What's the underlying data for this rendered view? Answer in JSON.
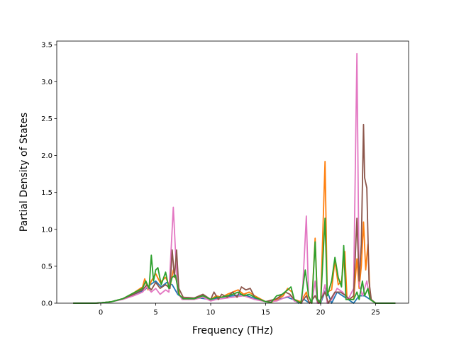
{
  "chart_data": {
    "type": "line",
    "title": "",
    "xlabel": "Frequency (THz)",
    "ylabel": "Partial Density of States",
    "xlim": [
      -4.0,
      28.0
    ],
    "ylim": [
      0.0,
      3.55
    ],
    "xticks": [
      0,
      5,
      10,
      15,
      20,
      25
    ],
    "yticks": [
      0.0,
      0.5,
      1.0,
      1.5,
      2.0,
      2.5,
      3.0,
      3.5
    ],
    "xtick_labels": [
      "0",
      "5",
      "10",
      "15",
      "20",
      "25"
    ],
    "ytick_labels": [
      "0.0",
      "0.5",
      "1.0",
      "1.5",
      "2.0",
      "2.5",
      "3.0",
      "3.5"
    ],
    "grid": false,
    "legend": null,
    "series": [
      {
        "color": "#1f77b4",
        "points": [
          [
            -2.5,
            0
          ],
          [
            -0.5,
            0
          ],
          [
            0,
            0.005
          ],
          [
            1,
            0.02
          ],
          [
            2,
            0.06
          ],
          [
            3,
            0.12
          ],
          [
            4,
            0.18
          ],
          [
            4.5,
            0.25
          ],
          [
            5,
            0.3
          ],
          [
            5.5,
            0.22
          ],
          [
            6,
            0.28
          ],
          [
            6.5,
            0.25
          ],
          [
            7,
            0.12
          ],
          [
            7.5,
            0.06
          ],
          [
            8,
            0.05
          ],
          [
            9,
            0.07
          ],
          [
            10,
            0.05
          ],
          [
            11,
            0.08
          ],
          [
            12,
            0.1
          ],
          [
            13,
            0.12
          ],
          [
            14,
            0.06
          ],
          [
            15,
            0.02
          ],
          [
            16,
            0.05
          ],
          [
            17,
            0.08
          ],
          [
            17.5,
            0.05
          ],
          [
            18,
            0
          ],
          [
            18.5,
            0.05
          ],
          [
            19,
            0
          ],
          [
            19.5,
            0.1
          ],
          [
            20,
            0
          ],
          [
            20.5,
            0.2
          ],
          [
            21,
            0
          ],
          [
            21.5,
            0.15
          ],
          [
            22,
            0.1
          ],
          [
            22.5,
            0.05
          ],
          [
            23,
            0
          ],
          [
            23.5,
            0.1
          ],
          [
            24,
            0.1
          ],
          [
            24.5,
            0.05
          ],
          [
            25,
            0
          ],
          [
            26.8,
            0
          ]
        ]
      },
      {
        "color": "#ff7f0e",
        "points": [
          [
            -2.5,
            0
          ],
          [
            -0.5,
            0
          ],
          [
            0,
            0.005
          ],
          [
            1,
            0.02
          ],
          [
            2,
            0.06
          ],
          [
            3,
            0.14
          ],
          [
            3.8,
            0.22
          ],
          [
            4.0,
            0.33
          ],
          [
            4.3,
            0.18
          ],
          [
            4.6,
            0.3
          ],
          [
            5.0,
            0.4
          ],
          [
            5.4,
            0.28
          ],
          [
            5.9,
            0.35
          ],
          [
            6.3,
            0.22
          ],
          [
            6.6,
            0.45
          ],
          [
            6.9,
            0.3
          ],
          [
            7.2,
            0.1
          ],
          [
            7.6,
            0.06
          ],
          [
            8.5,
            0.06
          ],
          [
            9.3,
            0.1
          ],
          [
            10,
            0.05
          ],
          [
            10.5,
            0.1
          ],
          [
            11,
            0.08
          ],
          [
            11.5,
            0.12
          ],
          [
            12,
            0.15
          ],
          [
            12.5,
            0.18
          ],
          [
            13,
            0.12
          ],
          [
            13.5,
            0.15
          ],
          [
            14,
            0.1
          ],
          [
            14.5,
            0.06
          ],
          [
            15,
            0.02
          ],
          [
            15.5,
            0.01
          ],
          [
            16,
            0.05
          ],
          [
            16.6,
            0.1
          ],
          [
            17,
            0.2
          ],
          [
            17.4,
            0.15
          ],
          [
            17.6,
            0.05
          ],
          [
            18.2,
            0.02
          ],
          [
            18.7,
            0.15
          ],
          [
            18.9,
            0.02
          ],
          [
            19.2,
            0
          ],
          [
            19.5,
            0.88
          ],
          [
            19.7,
            0.05
          ],
          [
            20.0,
            0
          ],
          [
            20.4,
            1.92
          ],
          [
            20.6,
            0.15
          ],
          [
            21.0,
            0.18
          ],
          [
            21.3,
            0.58
          ],
          [
            21.6,
            0.25
          ],
          [
            21.9,
            0.3
          ],
          [
            22.2,
            0.7
          ],
          [
            22.4,
            0.05
          ],
          [
            22.6,
            0.05
          ],
          [
            23.0,
            0.05
          ],
          [
            23.3,
            0.6
          ],
          [
            23.5,
            0.2
          ],
          [
            23.7,
            0.5
          ],
          [
            23.9,
            1.1
          ],
          [
            24.1,
            0.45
          ],
          [
            24.3,
            0.8
          ],
          [
            24.5,
            0.05
          ],
          [
            25,
            0
          ],
          [
            26.8,
            0
          ]
        ]
      },
      {
        "color": "#e377c2",
        "points": [
          [
            -2.5,
            0
          ],
          [
            -0.5,
            0
          ],
          [
            0,
            0.005
          ],
          [
            1,
            0.02
          ],
          [
            2,
            0.05
          ],
          [
            3,
            0.1
          ],
          [
            3.8,
            0.15
          ],
          [
            4.2,
            0.22
          ],
          [
            4.6,
            0.15
          ],
          [
            5.0,
            0.2
          ],
          [
            5.4,
            0.12
          ],
          [
            5.9,
            0.18
          ],
          [
            6.2,
            0.15
          ],
          [
            6.4,
            0.72
          ],
          [
            6.6,
            1.3
          ],
          [
            6.8,
            0.7
          ],
          [
            7.0,
            0.15
          ],
          [
            7.4,
            0.05
          ],
          [
            8.5,
            0.05
          ],
          [
            9.3,
            0.08
          ],
          [
            10,
            0.03
          ],
          [
            10.5,
            0.05
          ],
          [
            11,
            0.06
          ],
          [
            12,
            0.08
          ],
          [
            13,
            0.1
          ],
          [
            14,
            0.05
          ],
          [
            15,
            0.02
          ],
          [
            16,
            0.03
          ],
          [
            16.8,
            0.08
          ],
          [
            17.3,
            0.1
          ],
          [
            17.6,
            0.03
          ],
          [
            18.3,
            0
          ],
          [
            18.7,
            1.18
          ],
          [
            18.9,
            0.1
          ],
          [
            19.2,
            0
          ],
          [
            19.5,
            0.3
          ],
          [
            19.7,
            0
          ],
          [
            20.0,
            0
          ],
          [
            20.4,
            0.25
          ],
          [
            20.6,
            0
          ],
          [
            21.0,
            0.05
          ],
          [
            21.5,
            0.2
          ],
          [
            22.0,
            0.15
          ],
          [
            22.5,
            0.05
          ],
          [
            23.0,
            0.2
          ],
          [
            23.3,
            3.38
          ],
          [
            23.5,
            0.25
          ],
          [
            23.8,
            0.1
          ],
          [
            24.2,
            0.3
          ],
          [
            24.5,
            0.05
          ],
          [
            25,
            0
          ],
          [
            26.8,
            0
          ]
        ]
      },
      {
        "color": "#8c564b",
        "points": [
          [
            -2.5,
            0
          ],
          [
            -0.5,
            0
          ],
          [
            0,
            0.005
          ],
          [
            1,
            0.02
          ],
          [
            2,
            0.06
          ],
          [
            3,
            0.12
          ],
          [
            3.8,
            0.18
          ],
          [
            4.2,
            0.25
          ],
          [
            4.6,
            0.18
          ],
          [
            5.0,
            0.28
          ],
          [
            5.4,
            0.2
          ],
          [
            5.9,
            0.25
          ],
          [
            6.3,
            0.2
          ],
          [
            6.5,
            0.72
          ],
          [
            6.7,
            0.35
          ],
          [
            6.9,
            0.72
          ],
          [
            7.1,
            0.2
          ],
          [
            7.5,
            0.08
          ],
          [
            8.5,
            0.07
          ],
          [
            9.3,
            0.12
          ],
          [
            10,
            0.05
          ],
          [
            10.3,
            0.15
          ],
          [
            10.7,
            0.05
          ],
          [
            11,
            0.12
          ],
          [
            11.5,
            0.08
          ],
          [
            12,
            0.15
          ],
          [
            12.4,
            0.08
          ],
          [
            12.8,
            0.22
          ],
          [
            13.2,
            0.18
          ],
          [
            13.6,
            0.2
          ],
          [
            14,
            0.08
          ],
          [
            15,
            0.02
          ],
          [
            16,
            0.06
          ],
          [
            16.8,
            0.15
          ],
          [
            17.2,
            0.12
          ],
          [
            17.6,
            0.05
          ],
          [
            18.2,
            0
          ],
          [
            18.7,
            0.1
          ],
          [
            19.0,
            0
          ],
          [
            19.5,
            0.1
          ],
          [
            19.8,
            0
          ],
          [
            20.4,
            0.15
          ],
          [
            20.7,
            0
          ],
          [
            21.3,
            0.15
          ],
          [
            21.8,
            0.15
          ],
          [
            22.3,
            0.1
          ],
          [
            22.6,
            0.05
          ],
          [
            23.0,
            0.1
          ],
          [
            23.3,
            1.15
          ],
          [
            23.5,
            0.3
          ],
          [
            23.7,
            0.8
          ],
          [
            23.9,
            2.42
          ],
          [
            24.0,
            1.7
          ],
          [
            24.2,
            1.56
          ],
          [
            24.4,
            0.3
          ],
          [
            24.6,
            0.05
          ],
          [
            25,
            0
          ],
          [
            26.8,
            0
          ]
        ]
      },
      {
        "color": "#2ca02c",
        "points": [
          [
            -2.5,
            0
          ],
          [
            -0.5,
            0
          ],
          [
            0,
            0.005
          ],
          [
            1,
            0.02
          ],
          [
            2,
            0.06
          ],
          [
            3,
            0.14
          ],
          [
            3.8,
            0.2
          ],
          [
            4.1,
            0.3
          ],
          [
            4.4,
            0.2
          ],
          [
            4.6,
            0.65
          ],
          [
            4.8,
            0.3
          ],
          [
            5.0,
            0.45
          ],
          [
            5.2,
            0.48
          ],
          [
            5.5,
            0.25
          ],
          [
            5.9,
            0.42
          ],
          [
            6.2,
            0.2
          ],
          [
            6.5,
            0.35
          ],
          [
            6.8,
            0.38
          ],
          [
            7.1,
            0.12
          ],
          [
            7.5,
            0.06
          ],
          [
            8.5,
            0.06
          ],
          [
            9.3,
            0.1
          ],
          [
            10,
            0.05
          ],
          [
            10.5,
            0.08
          ],
          [
            11,
            0.08
          ],
          [
            11.5,
            0.1
          ],
          [
            12,
            0.12
          ],
          [
            12.5,
            0.15
          ],
          [
            13,
            0.1
          ],
          [
            13.5,
            0.12
          ],
          [
            14,
            0.08
          ],
          [
            14.5,
            0.05
          ],
          [
            15,
            0.02
          ],
          [
            15.5,
            0.01
          ],
          [
            16,
            0.1
          ],
          [
            16.5,
            0.12
          ],
          [
            17,
            0.18
          ],
          [
            17.3,
            0.22
          ],
          [
            17.6,
            0.05
          ],
          [
            18.2,
            0
          ],
          [
            18.6,
            0.45
          ],
          [
            18.9,
            0.1
          ],
          [
            19.2,
            0
          ],
          [
            19.5,
            0.83
          ],
          [
            19.7,
            0.05
          ],
          [
            20.0,
            0
          ],
          [
            20.4,
            1.15
          ],
          [
            20.6,
            0.1
          ],
          [
            21.0,
            0.3
          ],
          [
            21.3,
            0.62
          ],
          [
            21.6,
            0.35
          ],
          [
            21.9,
            0.22
          ],
          [
            22.1,
            0.78
          ],
          [
            22.3,
            0.05
          ],
          [
            22.6,
            0.05
          ],
          [
            23.0,
            0.05
          ],
          [
            23.3,
            0.15
          ],
          [
            23.5,
            0.05
          ],
          [
            23.8,
            0.3
          ],
          [
            24.0,
            0.1
          ],
          [
            24.3,
            0.2
          ],
          [
            24.5,
            0.05
          ],
          [
            25,
            0
          ],
          [
            26.8,
            0
          ]
        ]
      }
    ]
  }
}
